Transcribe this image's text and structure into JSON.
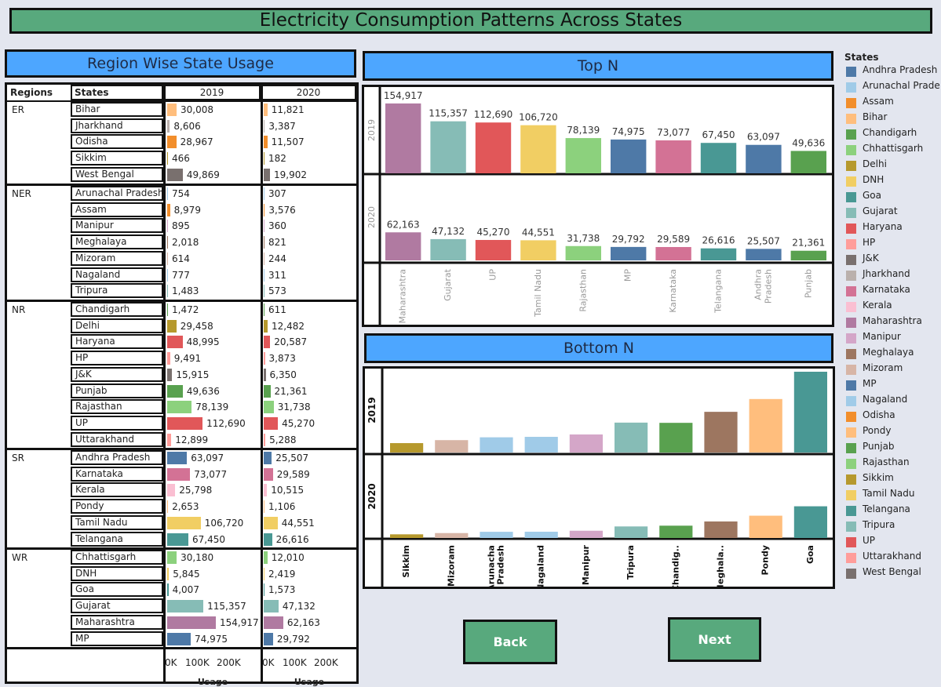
{
  "page_title": "Electricity Consumption Patterns Across States",
  "left_title": "Region Wise State Usage",
  "top_title": "Top N",
  "bottom_title": "Bottom N",
  "table_headers": {
    "regions": "Regions",
    "states": "States",
    "y2019": "2019",
    "y2020": "2020"
  },
  "axis": {
    "ticks": [
      "0K",
      "100K",
      "200K"
    ],
    "label": "Usage"
  },
  "buttons": {
    "back": "Back",
    "next": "Next"
  },
  "legend": {
    "title": "States",
    "items": [
      {
        "label": "Andhra Pradesh",
        "color": "#4e79a7"
      },
      {
        "label": "Arunachal Prade..",
        "color": "#a0cbe8"
      },
      {
        "label": "Assam",
        "color": "#f28e2b"
      },
      {
        "label": "Bihar",
        "color": "#ffbe7d"
      },
      {
        "label": "Chandigarh",
        "color": "#59a14f"
      },
      {
        "label": "Chhattisgarh",
        "color": "#8cd17d"
      },
      {
        "label": "Delhi",
        "color": "#b6992d"
      },
      {
        "label": "DNH",
        "color": "#f1ce63"
      },
      {
        "label": "Goa",
        "color": "#499894"
      },
      {
        "label": "Gujarat",
        "color": "#86bcb6"
      },
      {
        "label": "Haryana",
        "color": "#e15759"
      },
      {
        "label": "HP",
        "color": "#ff9d9a"
      },
      {
        "label": "J&K",
        "color": "#79706e"
      },
      {
        "label": "Jharkhand",
        "color": "#bab0ac"
      },
      {
        "label": "Karnataka",
        "color": "#d37295"
      },
      {
        "label": "Kerala",
        "color": "#fabfd2"
      },
      {
        "label": "Maharashtra",
        "color": "#b07aa1"
      },
      {
        "label": "Manipur",
        "color": "#d4a6c8"
      },
      {
        "label": "Meghalaya",
        "color": "#9d7660"
      },
      {
        "label": "Mizoram",
        "color": "#d7b5a6"
      },
      {
        "label": "MP",
        "color": "#4e79a7"
      },
      {
        "label": "Nagaland",
        "color": "#a0cbe8"
      },
      {
        "label": "Odisha",
        "color": "#f28e2b"
      },
      {
        "label": "Pondy",
        "color": "#ffbe7d"
      },
      {
        "label": "Punjab",
        "color": "#59a14f"
      },
      {
        "label": "Rajasthan",
        "color": "#8cd17d"
      },
      {
        "label": "Sikkim",
        "color": "#b6992d"
      },
      {
        "label": "Tamil Nadu",
        "color": "#f1ce63"
      },
      {
        "label": "Telangana",
        "color": "#499894"
      },
      {
        "label": "Tripura",
        "color": "#86bcb6"
      },
      {
        "label": "UP",
        "color": "#e15759"
      },
      {
        "label": "Uttarakhand",
        "color": "#ff9d9a"
      },
      {
        "label": "West Bengal",
        "color": "#79706e"
      }
    ]
  },
  "chart_data": [
    {
      "type": "bar",
      "name": "Region Wise State Usage",
      "xlabel": "Usage",
      "xlim": [
        0,
        250000
      ],
      "regions": [
        {
          "region": "ER",
          "states": [
            {
              "state": "Bihar",
              "v2019": 30008,
              "v2020": 11821,
              "l2019": "30,008",
              "l2020": "11,821"
            },
            {
              "state": "Jharkhand",
              "v2019": 8606,
              "v2020": 3387,
              "l2019": "8,606",
              "l2020": "3,387"
            },
            {
              "state": "Odisha",
              "v2019": 28967,
              "v2020": 11507,
              "l2019": "28,967",
              "l2020": "11,507"
            },
            {
              "state": "Sikkim",
              "v2019": 466,
              "v2020": 182,
              "l2019": "466",
              "l2020": "182"
            },
            {
              "state": "West Bengal",
              "v2019": 49869,
              "v2020": 19902,
              "l2019": "49,869",
              "l2020": "19,902"
            }
          ]
        },
        {
          "region": "NER",
          "states": [
            {
              "state": "Arunachal Pradesh",
              "v2019": 754,
              "v2020": 307,
              "l2019": "754",
              "l2020": "307"
            },
            {
              "state": "Assam",
              "v2019": 8979,
              "v2020": 3576,
              "l2019": "8,979",
              "l2020": "3,576"
            },
            {
              "state": "Manipur",
              "v2019": 895,
              "v2020": 360,
              "l2019": "895",
              "l2020": "360"
            },
            {
              "state": "Meghalaya",
              "v2019": 2018,
              "v2020": 821,
              "l2019": "2,018",
              "l2020": "821"
            },
            {
              "state": "Mizoram",
              "v2019": 614,
              "v2020": 244,
              "l2019": "614",
              "l2020": "244"
            },
            {
              "state": "Nagaland",
              "v2019": 777,
              "v2020": 311,
              "l2019": "777",
              "l2020": "311"
            },
            {
              "state": "Tripura",
              "v2019": 1483,
              "v2020": 573,
              "l2019": "1,483",
              "l2020": "573"
            }
          ]
        },
        {
          "region": "NR",
          "states": [
            {
              "state": "Chandigarh",
              "v2019": 1472,
              "v2020": 611,
              "l2019": "1,472",
              "l2020": "611"
            },
            {
              "state": "Delhi",
              "v2019": 29458,
              "v2020": 12482,
              "l2019": "29,458",
              "l2020": "12,482"
            },
            {
              "state": "Haryana",
              "v2019": 48995,
              "v2020": 20587,
              "l2019": "48,995",
              "l2020": "20,587"
            },
            {
              "state": "HP",
              "v2019": 9491,
              "v2020": 3873,
              "l2019": "9,491",
              "l2020": "3,873"
            },
            {
              "state": "J&K",
              "v2019": 15915,
              "v2020": 6350,
              "l2019": "15,915",
              "l2020": "6,350"
            },
            {
              "state": "Punjab",
              "v2019": 49636,
              "v2020": 21361,
              "l2019": "49,636",
              "l2020": "21,361"
            },
            {
              "state": "Rajasthan",
              "v2019": 78139,
              "v2020": 31738,
              "l2019": "78,139",
              "l2020": "31,738"
            },
            {
              "state": "UP",
              "v2019": 112690,
              "v2020": 45270,
              "l2019": "112,690",
              "l2020": "45,270"
            },
            {
              "state": "Uttarakhand",
              "v2019": 12899,
              "v2020": 5288,
              "l2019": "12,899",
              "l2020": "5,288"
            }
          ]
        },
        {
          "region": "SR",
          "states": [
            {
              "state": "Andhra Pradesh",
              "v2019": 63097,
              "v2020": 25507,
              "l2019": "63,097",
              "l2020": "25,507"
            },
            {
              "state": "Karnataka",
              "v2019": 73077,
              "v2020": 29589,
              "l2019": "73,077",
              "l2020": "29,589"
            },
            {
              "state": "Kerala",
              "v2019": 25798,
              "v2020": 10515,
              "l2019": "25,798",
              "l2020": "10,515"
            },
            {
              "state": "Pondy",
              "v2019": 2653,
              "v2020": 1106,
              "l2019": "2,653",
              "l2020": "1,106"
            },
            {
              "state": "Tamil Nadu",
              "v2019": 106720,
              "v2020": 44551,
              "l2019": "106,720",
              "l2020": "44,551"
            },
            {
              "state": "Telangana",
              "v2019": 67450,
              "v2020": 26616,
              "l2019": "67,450",
              "l2020": "26,616"
            }
          ]
        },
        {
          "region": "WR",
          "states": [
            {
              "state": "Chhattisgarh",
              "v2019": 30180,
              "v2020": 12010,
              "l2019": "30,180",
              "l2020": "12,010"
            },
            {
              "state": "DNH",
              "v2019": 5845,
              "v2020": 2419,
              "l2019": "5,845",
              "l2020": "2,419"
            },
            {
              "state": "Goa",
              "v2019": 4007,
              "v2020": 1573,
              "l2019": "4,007",
              "l2020": "1,573"
            },
            {
              "state": "Gujarat",
              "v2019": 115357,
              "v2020": 47132,
              "l2019": "115,357",
              "l2020": "47,132"
            },
            {
              "state": "Maharashtra",
              "v2019": 154917,
              "v2020": 62163,
              "l2019": "154,917",
              "l2020": "62,163"
            },
            {
              "state": "MP",
              "v2019": 74975,
              "v2020": 29792,
              "l2019": "74,975",
              "l2020": "29,792"
            }
          ]
        }
      ]
    },
    {
      "type": "bar",
      "name": "Top N",
      "categories": [
        "Maharashtra",
        "Gujarat",
        "UP",
        "Tamil Nadu",
        "Rajasthan",
        "MP",
        "Karnataka",
        "Telangana",
        "Andhra Pradesh",
        "Punjab"
      ],
      "category_labels": [
        [
          "Maharashtra"
        ],
        [
          "Gujarat"
        ],
        [
          "UP"
        ],
        [
          "Tamil Nadu"
        ],
        [
          "Rajasthan"
        ],
        [
          "MP"
        ],
        [
          "Karnataka"
        ],
        [
          "Telangana"
        ],
        [
          "Andhra",
          "Pradesh"
        ],
        [
          "Punjab"
        ]
      ],
      "series": [
        {
          "name": "2019",
          "values": [
            154917,
            115357,
            112690,
            106720,
            78139,
            74975,
            73077,
            67450,
            63097,
            49636
          ],
          "labels": [
            "154,917",
            "115,357",
            "112,690",
            "106,720",
            "78,139",
            "74,975",
            "73,077",
            "67,450",
            "63,097",
            "49,636"
          ]
        },
        {
          "name": "2020",
          "values": [
            62163,
            47132,
            45270,
            44551,
            31738,
            29792,
            29589,
            26616,
            25507,
            21361
          ],
          "labels": [
            "62,163",
            "47,132",
            "45,270",
            "44,551",
            "31,738",
            "29,792",
            "29,589",
            "26,616",
            "25,507",
            "21,361"
          ]
        }
      ]
    },
    {
      "type": "bar",
      "name": "Bottom N",
      "categories": [
        "Sikkim",
        "Mizoram",
        "Arunachal Pradesh",
        "Nagaland",
        "Manipur",
        "Tripura",
        "Chandigarh",
        "Meghalaya",
        "Pondy",
        "Goa"
      ],
      "category_labels": [
        [
          "Sikkim"
        ],
        [
          "Mizoram"
        ],
        [
          "Arunacha",
          "l Pradesh"
        ],
        [
          "Nagaland"
        ],
        [
          "Manipur"
        ],
        [
          "Tripura"
        ],
        [
          "Chandig.."
        ],
        [
          "Meghala.."
        ],
        [
          "Pondy"
        ],
        [
          "Goa"
        ]
      ],
      "series": [
        {
          "name": "2019",
          "values": [
            466,
            614,
            754,
            777,
            895,
            1483,
            1472,
            2018,
            2653,
            4007
          ]
        },
        {
          "name": "2020",
          "values": [
            182,
            244,
            307,
            311,
            360,
            573,
            611,
            821,
            1106,
            1573
          ]
        }
      ]
    }
  ]
}
